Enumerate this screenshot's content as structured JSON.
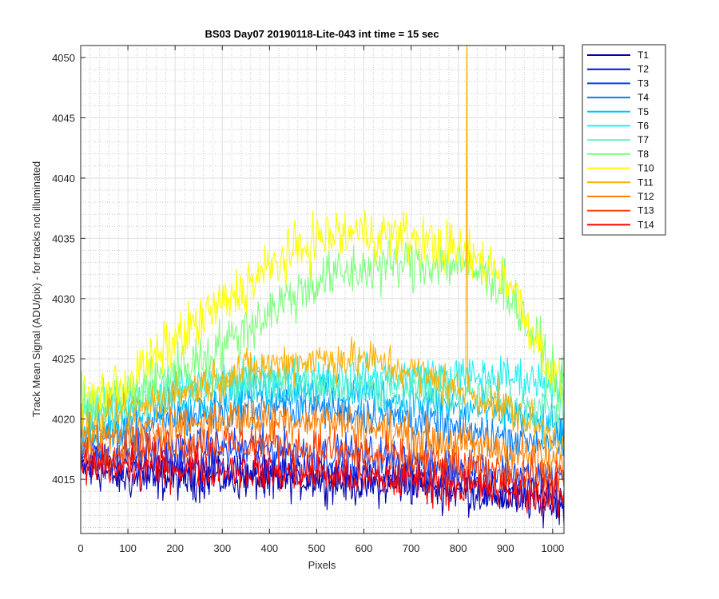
{
  "chart_data": {
    "type": "line",
    "title": "BS03 Day07 20190118-Lite-043 int time = 15 sec",
    "xlabel": "Pixels",
    "ylabel": "Track Mean Signal (ADU/pix) - for tracks not illuminated",
    "xlim": [
      0,
      1024
    ],
    "ylim": [
      4010.5,
      4051
    ],
    "xticks": [
      0,
      100,
      200,
      300,
      400,
      500,
      600,
      700,
      800,
      900,
      1000
    ],
    "yticks": [
      4015,
      4020,
      4025,
      4030,
      4035,
      4040,
      4045,
      4050
    ],
    "grid": "major and minor",
    "legend_position": "outside-right-top",
    "series": [
      {
        "name": "T1",
        "color": "#0000a8",
        "x": [
          0,
          100,
          200,
          300,
          400,
          500,
          600,
          700,
          800,
          900,
          1024
        ],
        "y": [
          4016,
          4015,
          4015,
          4015,
          4015,
          4015,
          4014.5,
          4014.5,
          4014,
          4013.5,
          4013
        ]
      },
      {
        "name": "T2",
        "color": "#0010d8",
        "x": [
          0,
          100,
          200,
          300,
          400,
          500,
          600,
          700,
          800,
          900,
          1024
        ],
        "y": [
          4016.5,
          4016,
          4016,
          4016,
          4015.5,
          4015.5,
          4015,
          4015,
          4014.5,
          4014,
          4013.5
        ]
      },
      {
        "name": "T3",
        "color": "#0040ff",
        "x": [
          0,
          100,
          200,
          300,
          400,
          500,
          600,
          700,
          800,
          900,
          1024
        ],
        "y": [
          4017,
          4017,
          4017.5,
          4017.5,
          4017.5,
          4017,
          4017,
          4016.5,
          4016,
          4015.5,
          4015
        ]
      },
      {
        "name": "T4",
        "color": "#0080ff",
        "x": [
          0,
          100,
          200,
          300,
          400,
          500,
          600,
          700,
          800,
          900,
          1024
        ],
        "y": [
          4018,
          4019,
          4020,
          4020.5,
          4021,
          4021,
          4020.5,
          4020,
          4019,
          4018.5,
          4018
        ]
      },
      {
        "name": "T5",
        "color": "#00c0ff",
        "x": [
          0,
          100,
          200,
          300,
          400,
          500,
          600,
          700,
          800,
          900,
          1024
        ],
        "y": [
          4018.5,
          4020,
          4021,
          4022,
          4022.5,
          4022.5,
          4022,
          4021.5,
          4021,
          4020.5,
          4019
        ]
      },
      {
        "name": "T6",
        "color": "#20f0f0",
        "x": [
          0,
          100,
          200,
          300,
          400,
          500,
          600,
          700,
          800,
          900,
          1024
        ],
        "y": [
          4020,
          4021.5,
          4022.5,
          4023,
          4023.5,
          4023.5,
          4023.5,
          4023.5,
          4023.5,
          4023.5,
          4023
        ]
      },
      {
        "name": "T7",
        "color": "#60f0c0",
        "x": [
          0,
          100,
          200,
          300,
          400,
          500,
          600,
          700,
          800,
          900,
          1024
        ],
        "y": [
          4020.5,
          4021.5,
          4022.5,
          4023,
          4023,
          4023,
          4022.5,
          4022.5,
          4022,
          4021.5,
          4020.5
        ]
      },
      {
        "name": "T8",
        "color": "#80ff80",
        "x": [
          0,
          100,
          200,
          300,
          400,
          500,
          600,
          700,
          800,
          900,
          1024
        ],
        "y": [
          4021,
          4022,
          4024,
          4026,
          4029,
          4031.5,
          4032.5,
          4033,
          4033,
          4031,
          4022
        ]
      },
      {
        "name": "T10",
        "color": "#ffff00",
        "x": [
          0,
          100,
          200,
          300,
          400,
          500,
          600,
          700,
          800,
          900,
          1024
        ],
        "y": [
          4021.5,
          4023,
          4026.5,
          4029.5,
          4032.5,
          4035,
          4035.5,
          4035,
          4034,
          4032,
          4022
        ]
      },
      {
        "name": "T11",
        "color": "#ffb000",
        "x": [
          0,
          100,
          200,
          300,
          400,
          500,
          600,
          700,
          800,
          900,
          1024
        ],
        "y": [
          4019,
          4020.5,
          4022,
          4023.5,
          4024.5,
          4025,
          4025,
          4024,
          4022.5,
          4021,
          4018
        ]
      },
      {
        "name": "T12",
        "color": "#ff8000",
        "x": [
          0,
          100,
          200,
          300,
          400,
          500,
          600,
          700,
          800,
          900,
          1024
        ],
        "y": [
          4018,
          4018.5,
          4019.5,
          4020,
          4020,
          4020,
          4019.5,
          4018.5,
          4018,
          4017.5,
          4016
        ]
      },
      {
        "name": "T13",
        "color": "#ff4000",
        "x": [
          0,
          100,
          200,
          300,
          400,
          500,
          600,
          700,
          800,
          900,
          1024
        ],
        "y": [
          4017,
          4017.5,
          4018,
          4018,
          4018,
          4017.5,
          4017,
          4016.5,
          4016,
          4015.5,
          4015
        ]
      },
      {
        "name": "T14",
        "color": "#ff0000",
        "x": [
          0,
          100,
          200,
          300,
          400,
          500,
          600,
          700,
          800,
          900,
          1024
        ],
        "y": [
          4016,
          4016,
          4016,
          4016,
          4015.5,
          4015.5,
          4015,
          4015,
          4014.5,
          4014,
          4013.5
        ]
      }
    ],
    "annotations": [
      {
        "series": "T11",
        "feature": "spike",
        "x": 818,
        "y_top": 4051
      }
    ]
  }
}
